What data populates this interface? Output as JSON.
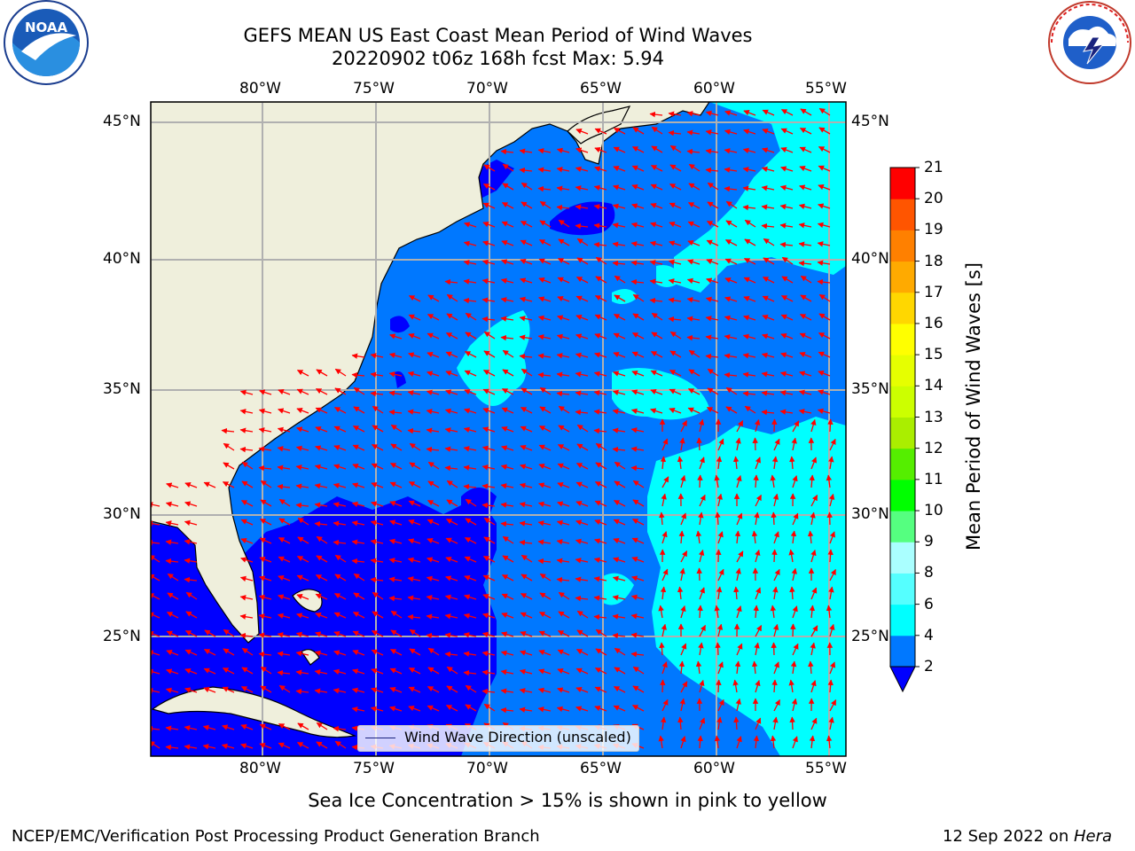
{
  "title": {
    "line1": "GEFS MEAN US East Coast Mean Period of Wind Waves",
    "line2": "20220902 t06z 168h fcst   Max: 5.94"
  },
  "logos": {
    "left": {
      "name": "noaa-logo",
      "text": "NOAA"
    },
    "right": {
      "name": "nws-logo",
      "text": "NATIONAL WEATHER SERVICE"
    }
  },
  "map": {
    "lon_labels": [
      "80°W",
      "75°W",
      "70°W",
      "65°W",
      "60°W",
      "55°W"
    ],
    "lat_labels": [
      "45°N",
      "40°N",
      "35°N",
      "30°N",
      "25°N"
    ],
    "colors": {
      "land": "#efefdc",
      "band_2_4": "#0078ff",
      "below_2": "#0000ff",
      "band_4_6": "#00ffff",
      "arrow": "#ff0000",
      "grid": "#b0b0b0"
    },
    "legend_label": "Wind Wave Direction (unscaled)"
  },
  "colorbar": {
    "label": "Mean Period of Wind Waves [s]",
    "ticks": [
      "2",
      "4",
      "6",
      "8",
      "9",
      "10",
      "11",
      "12",
      "13",
      "14",
      "15",
      "16",
      "17",
      "18",
      "19",
      "20",
      "21"
    ],
    "colors": [
      "#0078ff",
      "#00ffff",
      "#55ffff",
      "#aaffff",
      "#55ff80",
      "#00ff00",
      "#55ee00",
      "#aaee00",
      "#ccff00",
      "#e6ff00",
      "#ffff00",
      "#ffd700",
      "#ffaa00",
      "#ff8000",
      "#ff5500",
      "#ff2200",
      "#ff0000"
    ],
    "under_color": "#0000ff"
  },
  "caption": "Sea Ice Concentration > 15% is shown in pink to yellow",
  "footer": {
    "left": "NCEP/EMC/Verification Post Processing Product Generation Branch",
    "right_date": "12 Sep 2022 on ",
    "right_machine": "Hera"
  }
}
